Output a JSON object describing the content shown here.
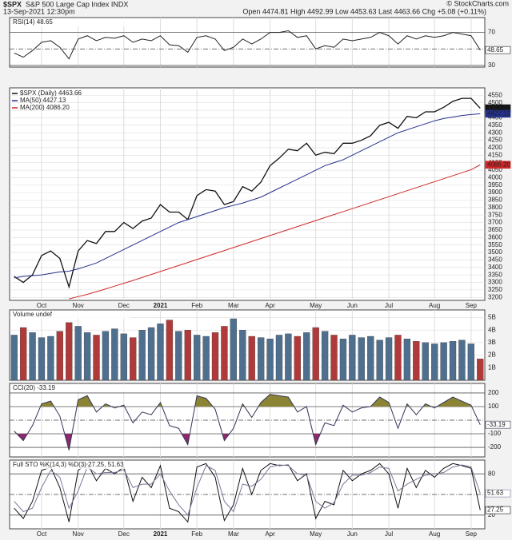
{
  "header": {
    "symbol": "$SPX",
    "name": "S&P 500 Large Cap Index INDX",
    "date": "13-Sep-2021 12:30pm",
    "quote": "Open 4474.81 High 4492.99 Low 4453.63 Last 4463.66 Chg +5.08 (+0.11%)",
    "watermark": "© StockCharts.com"
  },
  "chart_data": [
    {
      "type": "line",
      "title": "RSI(14) 48.65",
      "ylim": [
        28,
        88
      ],
      "yticks": [
        30,
        70
      ],
      "ref_lines": [
        50
      ],
      "grid": true,
      "series": [
        {
          "color": "#222222",
          "values": [
            45,
            40,
            48,
            58,
            60,
            52,
            38,
            62,
            66,
            60,
            64,
            63,
            66,
            58,
            62,
            60,
            66,
            55,
            54,
            46,
            64,
            66,
            62,
            48,
            52,
            62,
            56,
            62,
            70,
            70,
            72,
            64,
            66,
            50,
            54,
            52,
            62,
            60,
            62,
            64,
            70,
            66,
            56,
            66,
            62,
            66,
            64,
            66,
            70,
            68,
            66,
            48.65
          ]
        }
      ]
    },
    {
      "type": "line",
      "ylim": [
        3180,
        4600
      ],
      "yticks": [
        3200,
        3250,
        3300,
        3350,
        3400,
        3450,
        3500,
        3550,
        3600,
        3650,
        3700,
        3750,
        3800,
        3850,
        3900,
        3950,
        4000,
        4050,
        4100,
        4150,
        4200,
        4250,
        4300,
        4350,
        4400,
        4450,
        4500,
        4550
      ],
      "grid": true,
      "categories": [
        null,
        null,
        null,
        "Oct",
        null,
        null,
        null,
        "Nov",
        null,
        null,
        null,
        null,
        "Dec",
        null,
        null,
        null,
        "2021",
        null,
        null,
        null,
        "Feb",
        null,
        null,
        null,
        "Mar",
        null,
        null,
        null,
        "Apr",
        null,
        null,
        null,
        null,
        "May",
        null,
        null,
        null,
        "Jun",
        null,
        null,
        null,
        "Jul",
        null,
        null,
        null,
        null,
        "Aug",
        null,
        null,
        null,
        "Sep",
        null
      ],
      "series": [
        {
          "name": "$SPX (Daily) 4463.66",
          "color": "#111111",
          "values": [
            3340,
            3300,
            3350,
            3480,
            3510,
            3460,
            3270,
            3510,
            3580,
            3560,
            3640,
            3640,
            3700,
            3660,
            3710,
            3730,
            3820,
            3770,
            3770,
            3720,
            3880,
            3920,
            3910,
            3820,
            3840,
            3940,
            3910,
            3970,
            4080,
            4130,
            4190,
            4180,
            4230,
            4150,
            4170,
            4160,
            4230,
            4230,
            4250,
            4280,
            4350,
            4370,
            4330,
            4410,
            4400,
            4440,
            4440,
            4470,
            4510,
            4530,
            4530,
            4463.66
          ]
        },
        {
          "name": "MA(50) 4427.13",
          "color": "#24308a",
          "values": [
            3330,
            3340,
            3345,
            3350,
            3360,
            3370,
            3375,
            3390,
            3410,
            3430,
            3460,
            3490,
            3520,
            3550,
            3580,
            3610,
            3640,
            3670,
            3700,
            3720,
            3740,
            3760,
            3780,
            3800,
            3815,
            3830,
            3850,
            3870,
            3900,
            3930,
            3960,
            3990,
            4020,
            4050,
            4080,
            4100,
            4120,
            4150,
            4180,
            4210,
            4240,
            4270,
            4300,
            4320,
            4340,
            4360,
            4380,
            4395,
            4405,
            4415,
            4422,
            4427.13
          ]
        },
        {
          "name": "MA(200) 4086.20",
          "color": "#d02828",
          "values": [
            null,
            null,
            null,
            null,
            null,
            null,
            3190,
            3205,
            3220,
            3238,
            3256,
            3275,
            3294,
            3313,
            3333,
            3353,
            3373,
            3393,
            3413,
            3433,
            3453,
            3473,
            3493,
            3513,
            3533,
            3553,
            3573,
            3593,
            3613,
            3633,
            3653,
            3673,
            3693,
            3713,
            3733,
            3753,
            3773,
            3793,
            3813,
            3833,
            3853,
            3873,
            3893,
            3913,
            3933,
            3953,
            3973,
            3993,
            4013,
            4033,
            4053,
            4086.2
          ],
          "value_labels": [
            null,
            null,
            null,
            null,
            null,
            null,
            null,
            null,
            null,
            null,
            null,
            null,
            null,
            null,
            null,
            null,
            null,
            null,
            null,
            null,
            null,
            null,
            null,
            null,
            null,
            null,
            null,
            null,
            null,
            null,
            null,
            null,
            null,
            null,
            null,
            null,
            null,
            null,
            null,
            null,
            null,
            null,
            null,
            null,
            null,
            null,
            null,
            null,
            null,
            null,
            null,
            "4086.20"
          ]
        }
      ]
    },
    {
      "type": "bar",
      "title": "Volume undef",
      "ylim": [
        0,
        5600000000.0
      ],
      "yticks": [
        {
          "value": 1000000000.0,
          "label": "1B"
        },
        {
          "value": 2000000000.0,
          "label": "2B"
        },
        {
          "value": 3000000000.0,
          "label": "3B"
        },
        {
          "value": 4000000000.0,
          "label": "4B"
        },
        {
          "value": 5000000000.0,
          "label": "5B"
        }
      ],
      "grid": true,
      "series": [
        {
          "color": "#4f6f8f",
          "values": [
            3600000000.0,
            4200000000.0,
            3800000000.0,
            3400000000.0,
            3500000000.0,
            3900000000.0,
            4600000000.0,
            4300000000.0,
            3800000000.0,
            3600000000.0,
            3900000000.0,
            4100000000.0,
            3700000000.0,
            3400000000.0,
            4000000000.0,
            4200000000.0,
            4500000000.0,
            4800000000.0,
            3900000000.0,
            4000000000.0,
            3600000000.0,
            3500000000.0,
            3800000000.0,
            4300000000.0,
            4900000000.0,
            4000000000.0,
            3500000000.0,
            3400000000.0,
            3300000000.0,
            3600000000.0,
            3700000000.0,
            3500000000.0,
            3800000000.0,
            4200000000.0,
            3900000000.0,
            3600000000.0,
            3300000000.0,
            3600000000.0,
            3400000000.0,
            3500000000.0,
            3200000000.0,
            3400000000.0,
            3600000000.0,
            3300000000.0,
            3100000000.0,
            3000000000.0,
            2900000000.0,
            3000000000.0,
            3100000000.0,
            3200000000.0,
            2900000000.0,
            1700000000.0
          ]
        }
      ]
    },
    {
      "type": "line",
      "title": "CCI(20) -33.19",
      "ylim": [
        -270,
        270
      ],
      "yticks": [
        -200,
        -100,
        100,
        200
      ],
      "ref_lines": [
        0
      ],
      "grid": true,
      "fills": [
        {
          "level": 100,
          "color": "#8a8434"
        },
        {
          "level": -100,
          "color": "#8c2a6c"
        }
      ],
      "series": [
        {
          "color": "#333355",
          "values": [
            -80,
            -150,
            -40,
            120,
            140,
            30,
            -220,
            150,
            180,
            60,
            120,
            90,
            110,
            -20,
            60,
            40,
            130,
            -40,
            -60,
            -180,
            180,
            160,
            80,
            -150,
            -60,
            120,
            20,
            130,
            190,
            180,
            170,
            60,
            100,
            -180,
            -20,
            -40,
            110,
            60,
            90,
            100,
            170,
            130,
            -60,
            120,
            40,
            120,
            90,
            130,
            170,
            140,
            110,
            -33.19
          ]
        }
      ]
    },
    {
      "type": "line",
      "title": "Full STO %K(14,3) %D(3) 27.25, 51.63",
      "ylim": [
        0,
        100
      ],
      "yticks": [
        20,
        80
      ],
      "ref_lines": [
        50
      ],
      "grid": true,
      "categories": [
        null,
        null,
        null,
        "Oct",
        null,
        null,
        null,
        "Nov",
        null,
        null,
        null,
        null,
        "Dec",
        null,
        null,
        null,
        "2021",
        null,
        null,
        null,
        "Feb",
        null,
        null,
        null,
        "Mar",
        null,
        null,
        null,
        "Apr",
        null,
        null,
        null,
        null,
        "May",
        null,
        null,
        null,
        "Jun",
        null,
        null,
        null,
        "Jul",
        null,
        null,
        null,
        null,
        "Aug",
        null,
        null,
        null,
        "Sep",
        null
      ],
      "series": [
        {
          "color": "#111111",
          "values": [
            30,
            15,
            40,
            85,
            90,
            60,
            10,
            85,
            95,
            70,
            88,
            80,
            90,
            40,
            75,
            60,
            92,
            30,
            25,
            10,
            90,
            95,
            75,
            12,
            35,
            88,
            50,
            85,
            95,
            92,
            93,
            70,
            80,
            15,
            40,
            35,
            85,
            70,
            80,
            85,
            95,
            80,
            30,
            88,
            60,
            85,
            75,
            88,
            95,
            92,
            88,
            27.25
          ]
        },
        {
          "color": "#7a7a9a",
          "values": [
            40,
            25,
            30,
            60,
            85,
            75,
            30,
            55,
            90,
            80,
            82,
            82,
            86,
            60,
            65,
            65,
            80,
            55,
            35,
            20,
            60,
            92,
            85,
            40,
            25,
            65,
            62,
            72,
            90,
            93,
            92,
            80,
            78,
            40,
            30,
            38,
            65,
            78,
            78,
            82,
            90,
            88,
            55,
            65,
            72,
            78,
            80,
            82,
            90,
            93,
            90,
            51.63
          ]
        }
      ]
    }
  ]
}
